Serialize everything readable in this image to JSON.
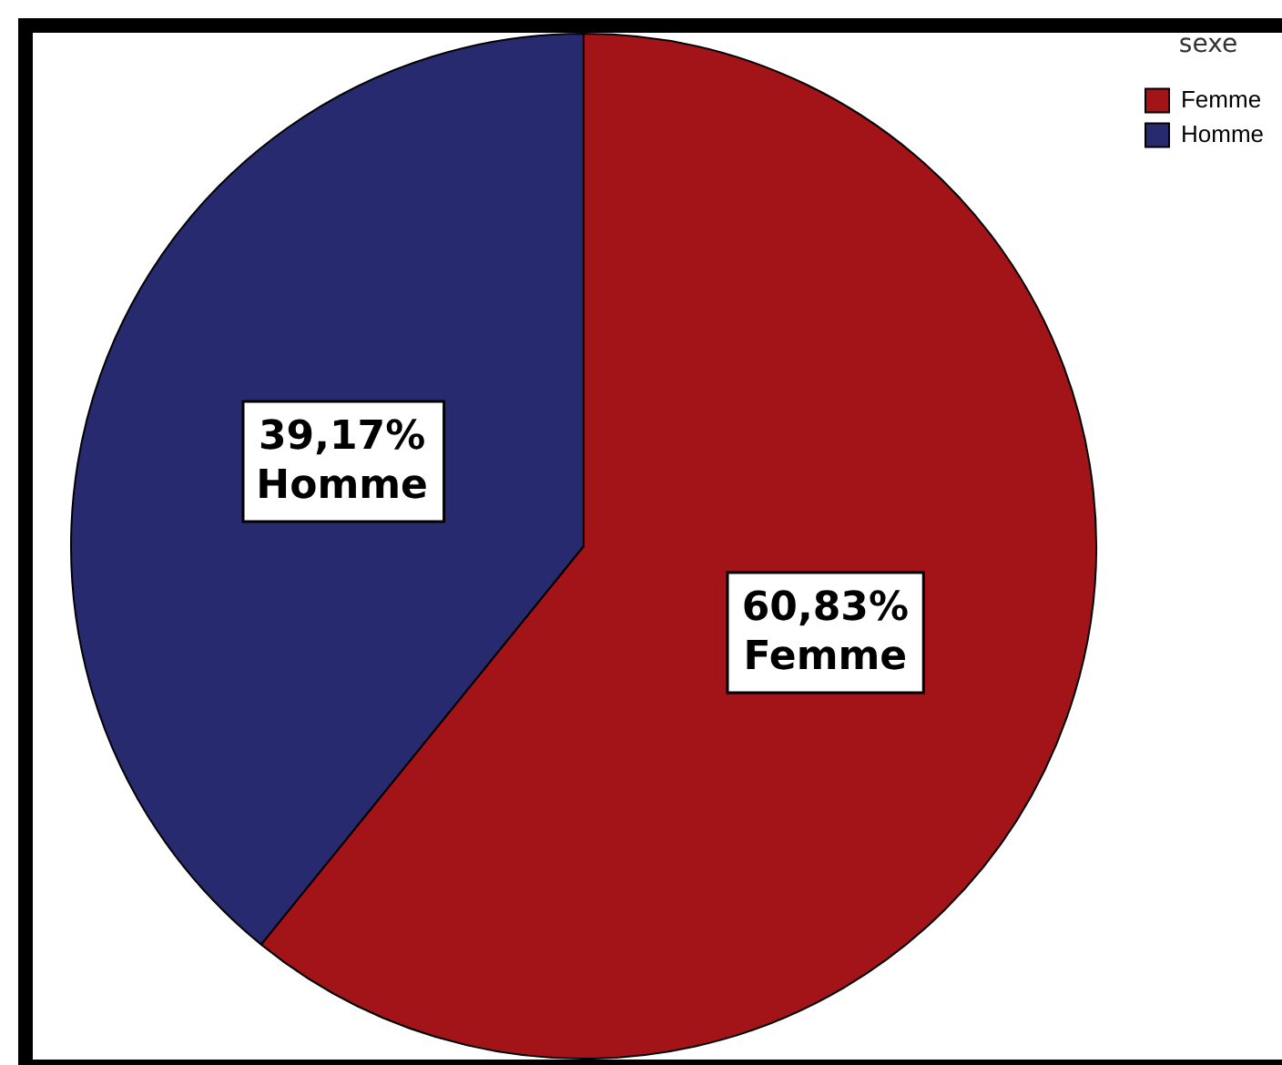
{
  "chart_data": {
    "type": "pie",
    "categories": [
      "Femme",
      "Homme"
    ],
    "values": [
      60.83,
      39.17
    ],
    "colors": [
      "#a31419",
      "#282a6f"
    ],
    "value_labels": [
      "60,83%",
      "39,17%"
    ],
    "legend": "top right",
    "legend_title": "sexe"
  }
}
